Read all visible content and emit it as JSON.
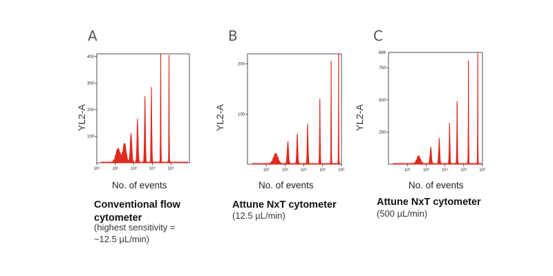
{
  "chart_data": [
    {
      "panel_letter": "A",
      "type": "area",
      "ylabel": "YL2-A",
      "xlabel": "No. of events",
      "x_scale": "log",
      "xlim": [
        1,
        6
      ],
      "x_ticks": [
        {
          "exp": 1,
          "label": "10¹"
        },
        {
          "exp": 2,
          "label": "10²"
        },
        {
          "exp": 3,
          "label": "10³"
        },
        {
          "exp": 4,
          "label": "10⁴"
        },
        {
          "exp": 5,
          "label": "10⁵"
        }
      ],
      "ylim": [
        0,
        410
      ],
      "y_ticks": [
        100,
        200,
        300,
        400
      ],
      "color": "#e02a1f",
      "peaks": [
        {
          "x": 2.15,
          "y": 52,
          "width": 0.3
        },
        {
          "x": 2.5,
          "y": 72,
          "width": 0.22
        },
        {
          "x": 2.85,
          "y": 110,
          "width": 0.12
        },
        {
          "x": 3.2,
          "y": 165,
          "width": 0.09
        },
        {
          "x": 3.6,
          "y": 250,
          "width": 0.07
        },
        {
          "x": 3.95,
          "y": 285,
          "width": 0.06
        },
        {
          "x": 4.45,
          "y": 410,
          "width": 0.04
        },
        {
          "x": 4.9,
          "y": 405,
          "width": 0.035
        }
      ],
      "caption_title": "Conventional flow cytometer",
      "caption_sub": "(highest sensitivity = ~12.5 µL/min)"
    },
    {
      "panel_letter": "B",
      "type": "area",
      "ylabel": "YL2-A",
      "xlabel": "No. of events",
      "x_scale": "log",
      "xlim": [
        1,
        6
      ],
      "x_ticks": [
        {
          "exp": 2,
          "label": "10²"
        },
        {
          "exp": 3,
          "label": "10³"
        },
        {
          "exp": 4,
          "label": "10⁴"
        },
        {
          "exp": 5,
          "label": "10⁵"
        },
        {
          "exp": 6,
          "label": "10⁶"
        }
      ],
      "ylim": [
        0,
        220
      ],
      "y_ticks": [
        100,
        200
      ],
      "color": "#e02a1f",
      "peaks": [
        {
          "x": 2.5,
          "y": 20,
          "width": 0.3
        },
        {
          "x": 3.15,
          "y": 45,
          "width": 0.1
        },
        {
          "x": 3.65,
          "y": 60,
          "width": 0.08
        },
        {
          "x": 4.2,
          "y": 80,
          "width": 0.07
        },
        {
          "x": 4.85,
          "y": 130,
          "width": 0.05
        },
        {
          "x": 5.45,
          "y": 205,
          "width": 0.035
        },
        {
          "x": 5.85,
          "y": 220,
          "width": 0.03
        }
      ],
      "caption_title": "Attune NxT cytometer",
      "caption_sub": "(12.5 µL/min)"
    },
    {
      "panel_letter": "C",
      "type": "area",
      "ylabel": "YL2-A",
      "xlabel": "No. of events",
      "x_scale": "log",
      "xlim": [
        1,
        6
      ],
      "x_ticks": [
        {
          "exp": 2,
          "label": "10²"
        },
        {
          "exp": 3,
          "label": "10³"
        },
        {
          "exp": 4,
          "label": "10⁴"
        },
        {
          "exp": 5,
          "label": "10⁵"
        },
        {
          "exp": 6,
          "label": "10⁶"
        }
      ],
      "ylim": [
        0,
        869
      ],
      "y_ticks": [
        250,
        500,
        750
      ],
      "y_max_label": "869",
      "color": "#e02a1f",
      "peaks": [
        {
          "x": 2.6,
          "y": 60,
          "width": 0.25
        },
        {
          "x": 3.25,
          "y": 130,
          "width": 0.1
        },
        {
          "x": 3.7,
          "y": 200,
          "width": 0.08
        },
        {
          "x": 4.25,
          "y": 320,
          "width": 0.06
        },
        {
          "x": 4.65,
          "y": 490,
          "width": 0.05
        },
        {
          "x": 5.25,
          "y": 805,
          "width": 0.035
        },
        {
          "x": 5.75,
          "y": 869,
          "width": 0.03
        }
      ],
      "caption_title": "Attune NxT cytometer",
      "caption_sub": "(500 µL/min)"
    }
  ]
}
